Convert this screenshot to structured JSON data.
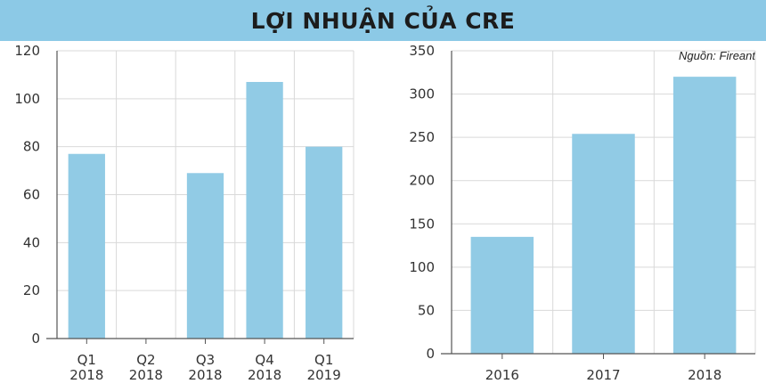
{
  "header": {
    "title": "LỢI NHUẬN CỦA CRE"
  },
  "source": "Nguồn: Fireant",
  "colors": {
    "bar": "#91cbe5",
    "header": "#8cc9e6",
    "grid": "#d9d9d9",
    "axis": "#555555"
  },
  "chart_data": [
    {
      "type": "bar",
      "categories": [
        [
          "Q1",
          "2018"
        ],
        [
          "Q2",
          "2018"
        ],
        [
          "Q3",
          "2018"
        ],
        [
          "Q4",
          "2018"
        ],
        [
          "Q1",
          "2019"
        ]
      ],
      "values": [
        77,
        0,
        69,
        107,
        80
      ],
      "ylim": [
        0,
        120
      ],
      "yticks": [
        0,
        20,
        40,
        60,
        80,
        100,
        120
      ],
      "grid": true
    },
    {
      "type": "bar",
      "categories": [
        [
          "2016"
        ],
        [
          "2017"
        ],
        [
          "2018"
        ]
      ],
      "values": [
        135,
        254,
        320
      ],
      "ylim": [
        0,
        350
      ],
      "yticks": [
        0,
        50,
        100,
        150,
        200,
        250,
        300,
        350
      ],
      "grid": true
    }
  ]
}
